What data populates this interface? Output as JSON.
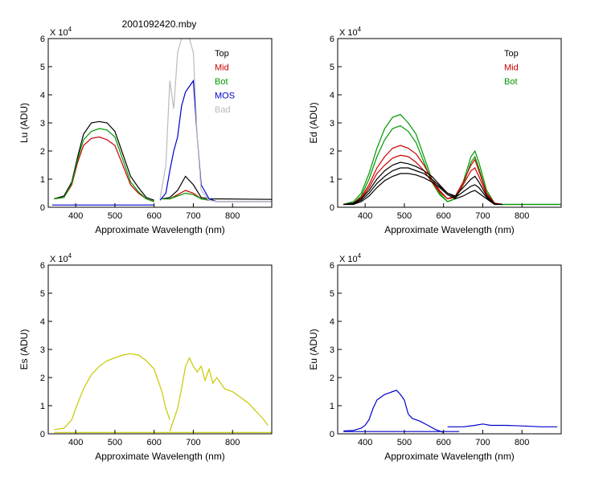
{
  "figure": {
    "title": "2001092420.mby"
  },
  "chart_data": [
    {
      "type": "line",
      "id": "lu",
      "ylabel": "Lu  (ADU)",
      "xlabel": "Approximate Wavelength (nm)",
      "multiplier": "X 10",
      "multiplier_exp": "4",
      "xlim": [
        330,
        900
      ],
      "ylim": [
        0,
        6
      ],
      "xticks": [
        400,
        500,
        600,
        700,
        800
      ],
      "yticks": [
        0,
        1,
        2,
        3,
        4,
        5,
        6
      ],
      "legend_position": "top-right",
      "legend": [
        {
          "name": "Top",
          "color": "#000000"
        },
        {
          "name": "Mid",
          "color": "#cc0000"
        },
        {
          "name": "Bot",
          "color": "#009900"
        },
        {
          "name": "MOS",
          "color": "#0000cc"
        },
        {
          "name": "Bad",
          "color": "#bbbbbb"
        }
      ],
      "series": [
        {
          "name": "Top",
          "color": "#000000",
          "x": [
            345,
            370,
            390,
            405,
            420,
            440,
            460,
            480,
            500,
            520,
            540,
            560,
            580,
            600
          ],
          "y": [
            0.3,
            0.4,
            0.9,
            1.8,
            2.6,
            3.0,
            3.05,
            3.0,
            2.7,
            1.9,
            1.1,
            0.7,
            0.35,
            0.25
          ]
        },
        {
          "name": "Mid",
          "color": "#cc0000",
          "x": [
            345,
            370,
            390,
            405,
            420,
            440,
            460,
            480,
            500,
            520,
            540,
            560,
            580,
            600
          ],
          "y": [
            0.3,
            0.35,
            0.8,
            1.6,
            2.2,
            2.45,
            2.5,
            2.4,
            2.2,
            1.5,
            0.8,
            0.5,
            0.3,
            0.2
          ]
        },
        {
          "name": "Bot",
          "color": "#009900",
          "x": [
            345,
            370,
            390,
            405,
            420,
            440,
            460,
            480,
            500,
            520,
            540,
            560,
            580,
            600
          ],
          "y": [
            0.3,
            0.35,
            0.85,
            1.7,
            2.4,
            2.7,
            2.8,
            2.75,
            2.5,
            1.7,
            0.9,
            0.55,
            0.3,
            0.2
          ]
        },
        {
          "name": "Top",
          "color": "#000000",
          "x": [
            620,
            640,
            660,
            680,
            700,
            720,
            740,
            900
          ],
          "y": [
            0.3,
            0.35,
            0.6,
            1.1,
            0.8,
            0.35,
            0.3,
            0.28
          ]
        },
        {
          "name": "Mid",
          "color": "#cc0000",
          "x": [
            620,
            640,
            660,
            680,
            700,
            720,
            740
          ],
          "y": [
            0.3,
            0.3,
            0.45,
            0.6,
            0.5,
            0.3,
            0.25
          ]
        },
        {
          "name": "Bot",
          "color": "#009900",
          "x": [
            620,
            640,
            660,
            680,
            700,
            720,
            740
          ],
          "y": [
            0.3,
            0.3,
            0.4,
            0.5,
            0.45,
            0.3,
            0.25
          ]
        },
        {
          "name": "MOS",
          "color": "#0000cc",
          "x": [
            615,
            630,
            640,
            650,
            660,
            670,
            680,
            690,
            700,
            710,
            720,
            740,
            760,
            900
          ],
          "y": [
            0.25,
            0.5,
            1.3,
            2.0,
            2.5,
            3.6,
            4.1,
            4.3,
            4.5,
            2.5,
            0.8,
            0.3,
            0.2,
            0.2
          ]
        },
        {
          "name": "MOS",
          "color": "#0000cc",
          "x": [
            340,
            600
          ],
          "y": [
            0.08,
            0.08
          ]
        },
        {
          "name": "Bad",
          "color": "#bbbbbb",
          "x": [
            615,
            630,
            640,
            650,
            660,
            670,
            680,
            690,
            700,
            710,
            720,
            740,
            760,
            900
          ],
          "y": [
            0.3,
            1.5,
            4.5,
            3.5,
            5.5,
            6.0,
            6.0,
            6.0,
            5.5,
            2.5,
            0.6,
            0.25,
            0.2,
            0.2
          ]
        }
      ]
    },
    {
      "type": "line",
      "id": "ed",
      "ylabel": "Ed  (ADU)",
      "xlabel": "Approximate Wavelength (nm)",
      "multiplier": "X 10",
      "multiplier_exp": "4",
      "xlim": [
        330,
        900
      ],
      "ylim": [
        0,
        6
      ],
      "xticks": [
        400,
        500,
        600,
        700,
        800
      ],
      "yticks": [
        0,
        1,
        2,
        3,
        4,
        5,
        6
      ],
      "legend_position": "top-right",
      "legend": [
        {
          "name": "Top",
          "color": "#000000"
        },
        {
          "name": "Mid",
          "color": "#cc0000"
        },
        {
          "name": "Bot",
          "color": "#009900"
        }
      ],
      "series": [
        {
          "name": "Bot",
          "color": "#009900",
          "x": [
            345,
            370,
            390,
            410,
            430,
            450,
            470,
            490,
            510,
            530,
            550,
            570,
            590,
            610,
            630,
            650,
            670,
            680,
            690,
            710,
            730,
            750,
            900
          ],
          "y": [
            0.1,
            0.2,
            0.5,
            1.2,
            2.1,
            2.8,
            3.2,
            3.3,
            3.0,
            2.6,
            1.8,
            1.0,
            0.5,
            0.2,
            0.3,
            0.9,
            1.8,
            2.0,
            1.6,
            0.6,
            0.15,
            0.1,
            0.1
          ]
        },
        {
          "name": "Bot",
          "color": "#009900",
          "x": [
            345,
            370,
            390,
            410,
            430,
            450,
            470,
            490,
            510,
            530,
            550,
            570,
            590,
            610,
            630,
            650,
            670,
            680,
            690,
            710,
            730,
            750,
            900
          ],
          "y": [
            0.1,
            0.15,
            0.4,
            1.0,
            1.8,
            2.4,
            2.8,
            2.9,
            2.7,
            2.3,
            1.6,
            0.9,
            0.45,
            0.2,
            0.3,
            0.8,
            1.6,
            1.8,
            1.4,
            0.5,
            0.15,
            0.1,
            0.1
          ]
        },
        {
          "name": "Mid",
          "color": "#cc0000",
          "x": [
            345,
            370,
            390,
            410,
            430,
            450,
            470,
            490,
            510,
            530,
            550,
            570,
            590,
            610,
            630,
            650,
            670,
            680,
            690,
            710,
            730,
            750
          ],
          "y": [
            0.1,
            0.15,
            0.35,
            0.8,
            1.4,
            1.8,
            2.1,
            2.2,
            2.1,
            1.9,
            1.5,
            1.0,
            0.6,
            0.3,
            0.4,
            0.9,
            1.5,
            1.7,
            1.3,
            0.5,
            0.15,
            0.1
          ]
        },
        {
          "name": "Mid",
          "color": "#cc0000",
          "x": [
            345,
            370,
            390,
            410,
            430,
            450,
            470,
            490,
            510,
            530,
            550,
            570,
            590,
            610,
            630,
            650,
            670,
            680,
            690,
            710,
            730,
            750
          ],
          "y": [
            0.1,
            0.12,
            0.3,
            0.7,
            1.2,
            1.5,
            1.75,
            1.85,
            1.8,
            1.6,
            1.3,
            0.9,
            0.55,
            0.3,
            0.35,
            0.8,
            1.3,
            1.4,
            1.1,
            0.45,
            0.12,
            0.1
          ]
        },
        {
          "name": "Top",
          "color": "#000000",
          "x": [
            345,
            370,
            390,
            410,
            430,
            450,
            470,
            490,
            510,
            530,
            550,
            570,
            590,
            610,
            630,
            650,
            670,
            680,
            690,
            710,
            730,
            750
          ],
          "y": [
            0.1,
            0.15,
            0.3,
            0.6,
            1.0,
            1.3,
            1.5,
            1.6,
            1.55,
            1.45,
            1.3,
            1.1,
            0.8,
            0.5,
            0.4,
            0.7,
            1.0,
            1.1,
            0.9,
            0.4,
            0.12,
            0.1
          ]
        },
        {
          "name": "Top",
          "color": "#000000",
          "x": [
            345,
            370,
            390,
            410,
            430,
            450,
            470,
            490,
            510,
            530,
            550,
            570,
            590,
            610,
            630,
            650,
            670,
            680,
            690,
            710,
            730,
            750
          ],
          "y": [
            0.1,
            0.12,
            0.25,
            0.5,
            0.85,
            1.1,
            1.3,
            1.4,
            1.4,
            1.3,
            1.2,
            1.0,
            0.75,
            0.5,
            0.35,
            0.55,
            0.75,
            0.8,
            0.7,
            0.35,
            0.12,
            0.1
          ]
        },
        {
          "name": "Top",
          "color": "#000000",
          "x": [
            345,
            370,
            390,
            410,
            430,
            450,
            470,
            490,
            510,
            530,
            550,
            570,
            590,
            610,
            630,
            650,
            670,
            680,
            690,
            710,
            730,
            750
          ],
          "y": [
            0.1,
            0.1,
            0.2,
            0.4,
            0.7,
            0.95,
            1.1,
            1.2,
            1.2,
            1.15,
            1.05,
            0.9,
            0.7,
            0.45,
            0.3,
            0.4,
            0.55,
            0.6,
            0.5,
            0.3,
            0.1,
            0.1
          ]
        }
      ]
    },
    {
      "type": "line",
      "id": "es",
      "ylabel": "Es  (ADU)",
      "xlabel": "Approximate Wavelength (nm)",
      "multiplier": "X 10",
      "multiplier_exp": "4",
      "xlim": [
        330,
        900
      ],
      "ylim": [
        0,
        6
      ],
      "xticks": [
        400,
        500,
        600,
        700,
        800
      ],
      "yticks": [
        0,
        1,
        2,
        3,
        4,
        5,
        6
      ],
      "series": [
        {
          "name": "Es",
          "color": "#c8c800",
          "x": [
            345,
            370,
            390,
            400,
            420,
            440,
            460,
            480,
            500,
            520,
            540,
            560,
            580,
            600,
            620,
            630,
            640
          ],
          "y": [
            0.15,
            0.2,
            0.5,
            0.9,
            1.6,
            2.1,
            2.4,
            2.6,
            2.7,
            2.8,
            2.85,
            2.8,
            2.6,
            2.3,
            1.5,
            0.9,
            0.5
          ]
        },
        {
          "name": "Es",
          "color": "#c8c800",
          "x": [
            640,
            660,
            670,
            680,
            690,
            700,
            710,
            720,
            730,
            740,
            750,
            760,
            780,
            800,
            820,
            840,
            860,
            880,
            890
          ],
          "y": [
            0.1,
            0.9,
            1.6,
            2.4,
            2.7,
            2.4,
            2.2,
            2.4,
            1.9,
            2.3,
            1.8,
            2.0,
            1.6,
            1.5,
            1.3,
            1.1,
            0.8,
            0.5,
            0.3
          ]
        },
        {
          "name": "Es",
          "color": "#c8c800",
          "x": [
            345,
            900
          ],
          "y": [
            0.05,
            0.05
          ]
        }
      ]
    },
    {
      "type": "line",
      "id": "eu",
      "ylabel": "Eu  (ADU)",
      "xlabel": "Approximate Wavelength (nm)",
      "multiplier": "X 10",
      "multiplier_exp": "4",
      "xlim": [
        330,
        900
      ],
      "ylim": [
        0,
        6
      ],
      "xticks": [
        400,
        500,
        600,
        700,
        800
      ],
      "yticks": [
        0,
        1,
        2,
        3,
        4,
        5,
        6
      ],
      "series": [
        {
          "name": "Eu",
          "color": "#0000cc",
          "x": [
            345,
            370,
            390,
            400,
            410,
            420,
            430,
            440,
            450,
            460,
            470,
            480,
            490,
            500,
            510,
            520,
            540,
            560,
            580,
            600
          ],
          "y": [
            0.1,
            0.12,
            0.2,
            0.3,
            0.5,
            0.9,
            1.2,
            1.3,
            1.4,
            1.45,
            1.5,
            1.55,
            1.4,
            1.2,
            0.7,
            0.55,
            0.45,
            0.3,
            0.15,
            0.05
          ]
        },
        {
          "name": "Eu",
          "color": "#0000cc",
          "x": [
            345,
            640
          ],
          "y": [
            0.08,
            0.08
          ]
        },
        {
          "name": "Eu",
          "color": "#0000cc",
          "x": [
            610,
            650,
            680,
            700,
            720,
            760,
            800,
            850,
            890
          ],
          "y": [
            0.25,
            0.25,
            0.3,
            0.35,
            0.3,
            0.3,
            0.28,
            0.25,
            0.25
          ]
        }
      ]
    }
  ]
}
